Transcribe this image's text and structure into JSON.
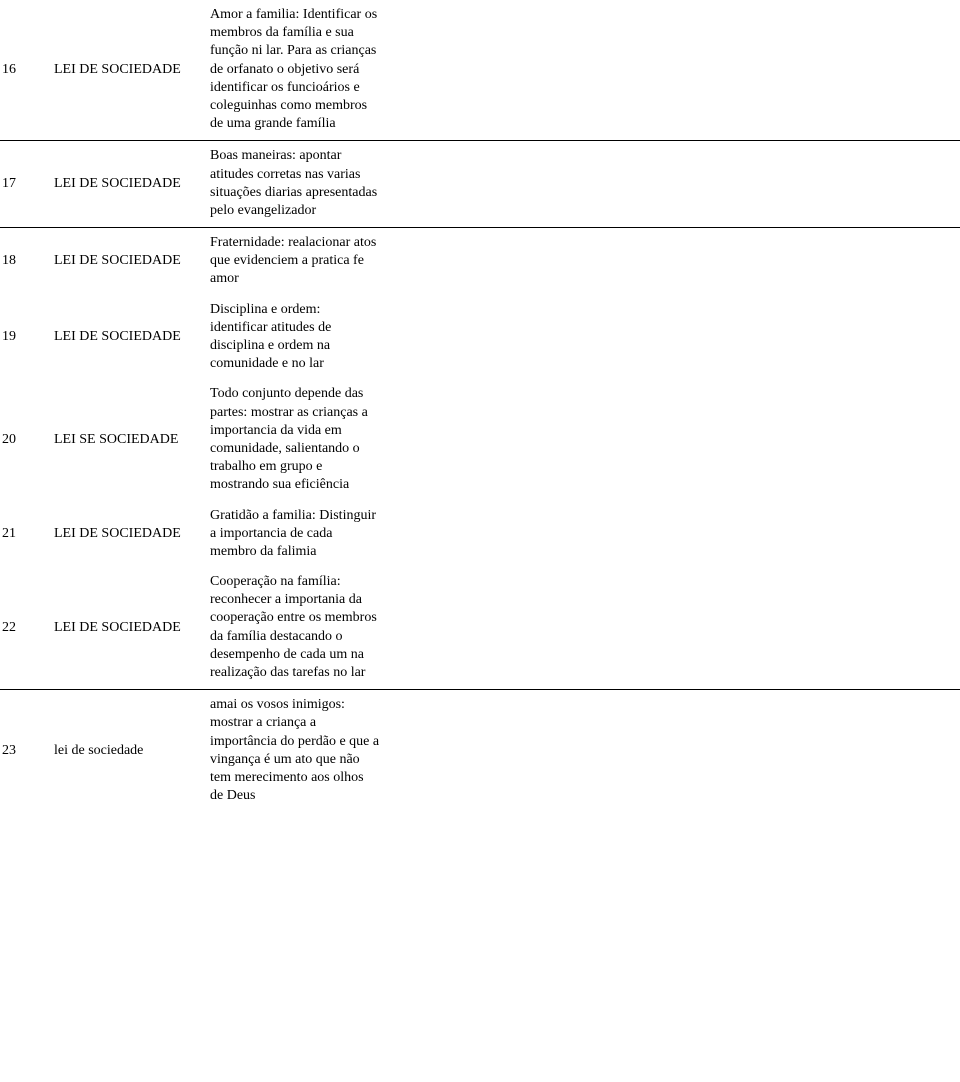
{
  "rows": [
    {
      "n": "16",
      "law": "LEI DE SOCIEDADE",
      "desc": "Amor a familia: Identificar os membros da família e sua função ni lar. Para as  crianças de orfanato  o objetivo será identificar os funcioários e coleguinhas como membros de uma grande família"
    },
    {
      "n": "17",
      "law": "LEI DE SOCIEDADE",
      "desc": "Boas maneiras: apontar atitudes corretas nas varias situações diarias apresentadas pelo evangelizador"
    },
    {
      "n": "18",
      "law": "LEI DE SOCIEDADE",
      "desc": "Fraternidade: realacionar atos que evidenciem a pratica fe amor"
    },
    {
      "n": "19",
      "law": "LEI DE SOCIEDADE",
      "desc": "Disciplina e ordem: identificar atitudes de disciplina e ordem na comunidade e no lar"
    },
    {
      "n": "20",
      "law": "LEI SE SOCIEDADE",
      "desc": "Todo conjunto depende das partes: mostrar as crianças a importancia da vida em comunidade, salientando o trabalho em grupo e mostrando sua eficiência"
    },
    {
      "n": "21",
      "law": "LEI DE SOCIEDADE",
      "desc": "Gratidão a familia: Distinguir a importancia de cada membro da falimia"
    },
    {
      "n": "22",
      "law": "LEI DE SOCIEDADE",
      "desc": "Cooperação na família: reconhecer a importania da cooperação entre os membros da família destacando o desempenho de cada um na realização das tarefas no lar"
    },
    {
      "n": "23",
      "law": "lei de sociedade",
      "desc": "amai os vosos inimigos: mostrar a criança a importância do perdão e que  a vingança é um ato que não tem merecimento aos olhos de Deus"
    }
  ],
  "rulesAfter": [
    0,
    1,
    6
  ],
  "style": {
    "font_family": "Times New Roman",
    "font_size_pt": 11,
    "text_color": "#000000",
    "background_color": "#ffffff",
    "rule_color": "#000000"
  }
}
